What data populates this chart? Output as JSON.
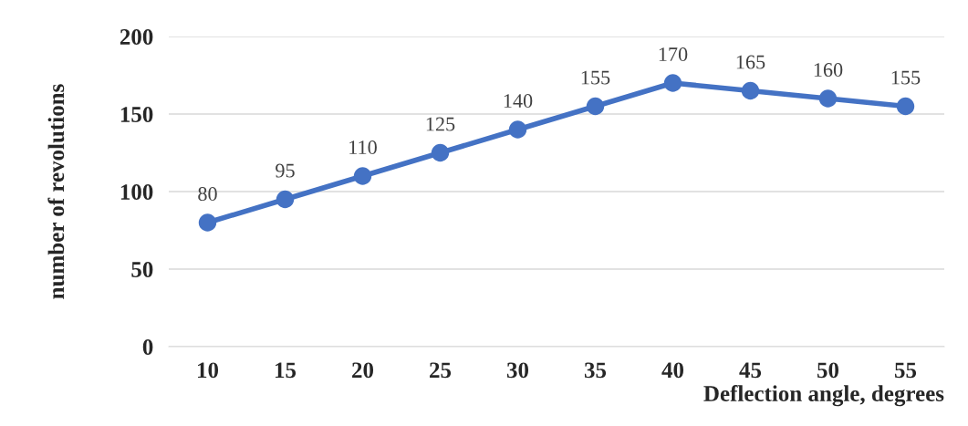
{
  "chart_data": {
    "type": "line",
    "xlabel": "Deflection angle, degrees",
    "ylabel": "number of revolutions",
    "categories": [
      "10",
      "15",
      "20",
      "25",
      "30",
      "35",
      "40",
      "45",
      "50",
      "55"
    ],
    "series": [
      {
        "color": "#4472c4",
        "values": [
          80,
          95,
          110,
          125,
          140,
          155,
          170,
          165,
          160,
          155
        ]
      }
    ],
    "ylim": [
      0,
      200
    ],
    "yticks": [
      0,
      50,
      100,
      150,
      200
    ],
    "grid": "y",
    "marker": "circle",
    "line_style": "solid",
    "data_labels": true
  }
}
